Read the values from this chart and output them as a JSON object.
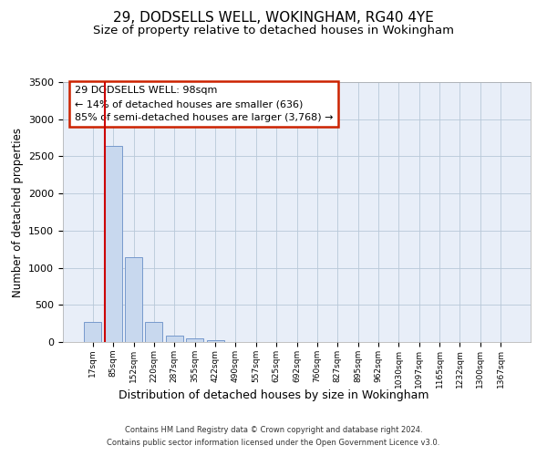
{
  "title1": "29, DODSELLS WELL, WOKINGHAM, RG40 4YE",
  "title2": "Size of property relative to detached houses in Wokingham",
  "xlabel": "Distribution of detached houses by size in Wokingham",
  "ylabel": "Number of detached properties",
  "bar_color": "#c8d8ee",
  "bar_edge_color": "#7799cc",
  "categories": [
    "17sqm",
    "85sqm",
    "152sqm",
    "220sqm",
    "287sqm",
    "355sqm",
    "422sqm",
    "490sqm",
    "557sqm",
    "625sqm",
    "692sqm",
    "760sqm",
    "827sqm",
    "895sqm",
    "962sqm",
    "1030sqm",
    "1097sqm",
    "1165sqm",
    "1232sqm",
    "1300sqm",
    "1367sqm"
  ],
  "values": [
    270,
    2640,
    1140,
    272,
    85,
    45,
    25,
    0,
    0,
    0,
    0,
    0,
    0,
    0,
    0,
    0,
    0,
    0,
    0,
    0,
    0
  ],
  "vline_color": "#cc0000",
  "annotation_line1": "29 DODSELLS WELL: 98sqm",
  "annotation_line2": "← 14% of detached houses are smaller (636)",
  "annotation_line3": "85% of semi-detached houses are larger (3,768) →",
  "annotation_box_facecolor": "#ffffff",
  "annotation_box_edgecolor": "#cc2200",
  "ylim": [
    0,
    3500
  ],
  "yticks": [
    0,
    500,
    1000,
    1500,
    2000,
    2500,
    3000,
    3500
  ],
  "footnote1": "Contains HM Land Registry data © Crown copyright and database right 2024.",
  "footnote2": "Contains public sector information licensed under the Open Government Licence v3.0.",
  "bg_color": "#e8eef8",
  "grid_color": "#b8c8d8",
  "title_fontsize": 11,
  "subtitle_fontsize": 9.5
}
